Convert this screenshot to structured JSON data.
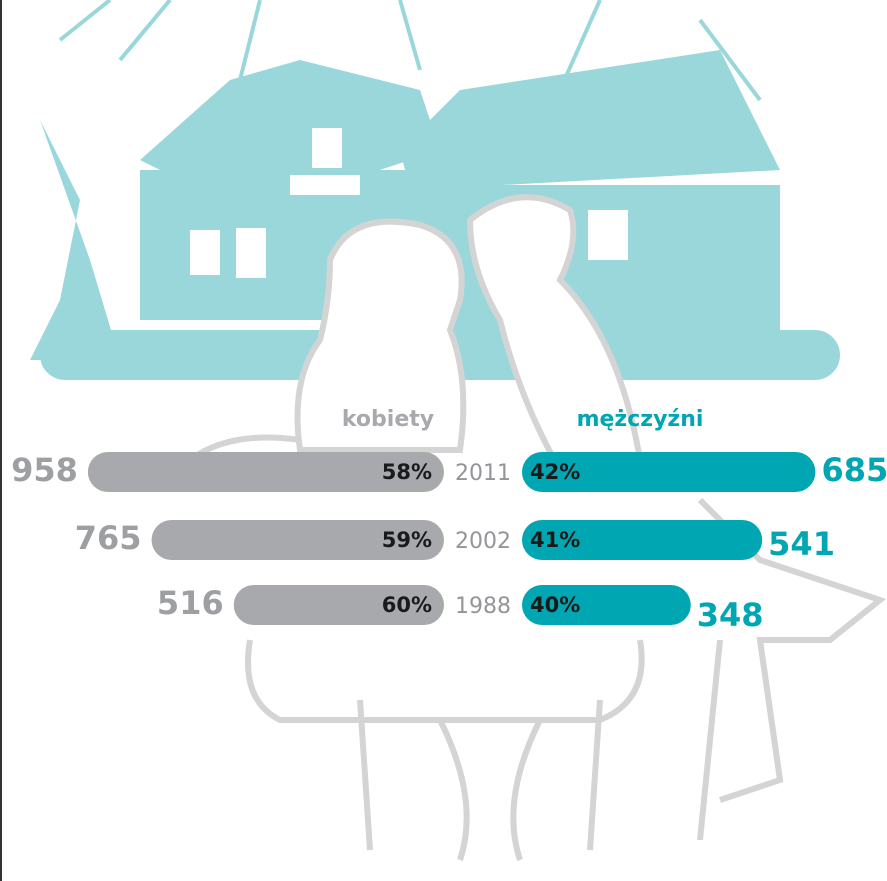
{
  "chart_data": {
    "type": "bar",
    "categories": [
      "2011",
      "2002",
      "1988"
    ],
    "series": [
      {
        "name": "kobiety",
        "color": "#a7a9ac",
        "values": [
          958,
          765,
          516
        ],
        "shares": [
          58,
          59,
          60
        ],
        "share_labels": [
          "58%",
          "59%",
          "60%"
        ]
      },
      {
        "name": "mężczyźni",
        "color": "#00a6b2",
        "values": [
          685,
          541,
          348
        ],
        "shares": [
          42,
          41,
          40
        ],
        "share_labels": [
          "42%",
          "41%",
          "40%"
        ]
      }
    ]
  }
}
